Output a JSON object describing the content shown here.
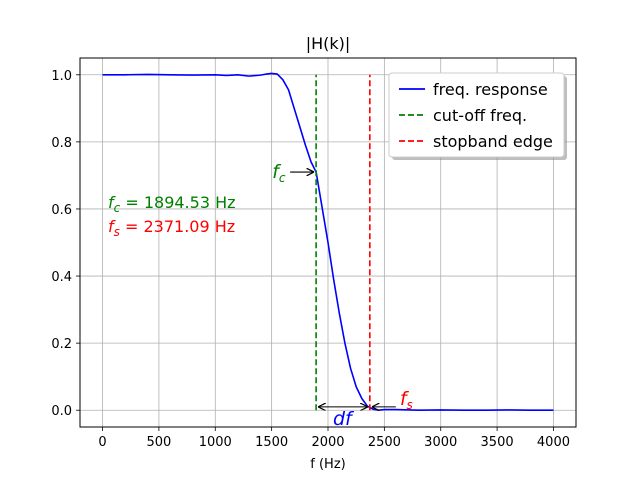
{
  "chart_data": {
    "type": "line",
    "title": "|H(k)|",
    "xlabel": "f (Hz)",
    "ylabel": "",
    "xlim": [
      -200,
      4200
    ],
    "ylim": [
      -0.05,
      1.05
    ],
    "grid": true,
    "x_ticks": [
      0,
      500,
      1000,
      1500,
      2000,
      2500,
      3000,
      3500,
      4000
    ],
    "x_tick_labels": [
      "0",
      "500",
      "1000",
      "1500",
      "2000",
      "2500",
      "3000",
      "3500",
      "4000"
    ],
    "y_ticks": [
      0.0,
      0.2,
      0.4,
      0.6,
      0.8,
      1.0
    ],
    "y_tick_labels": [
      "0.0",
      "0.2",
      "0.4",
      "0.6",
      "0.8",
      "1.0"
    ],
    "legend_position": "top-right",
    "series": [
      {
        "name": "freq. response",
        "color": "#0000ff",
        "style": "solid",
        "x": [
          0,
          200,
          400,
          600,
          800,
          1000,
          1100,
          1200,
          1300,
          1400,
          1450,
          1500,
          1550,
          1600,
          1650,
          1700,
          1750,
          1800,
          1850,
          1894.53,
          1950,
          2000,
          2050,
          2100,
          2150,
          2200,
          2250,
          2300,
          2350,
          2400,
          2450,
          2500,
          2600,
          2800,
          3000,
          3200,
          3400,
          3600,
          3800,
          4000
        ],
        "y": [
          1.0,
          1.0,
          1.001,
          1.0,
          0.999,
          1.0,
          0.998,
          1.0,
          0.996,
          0.999,
          1.002,
          1.004,
          1.002,
          0.985,
          0.955,
          0.9,
          0.845,
          0.79,
          0.74,
          0.71,
          0.6,
          0.5,
          0.39,
          0.29,
          0.2,
          0.125,
          0.07,
          0.035,
          0.012,
          0.003,
          0.0,
          0.002,
          0.002,
          0.0,
          0.001,
          0.0,
          0.0,
          0.001,
          0.0,
          0.0
        ]
      },
      {
        "name": "cut-off freq.",
        "color": "#008000",
        "style": "dashed",
        "x": [
          1894.53,
          1894.53
        ],
        "y": [
          0.0,
          1.0
        ]
      },
      {
        "name": "stopband edge",
        "color": "#ff0000",
        "style": "dashed",
        "x": [
          2371.09,
          2371.09
        ],
        "y": [
          0.0,
          1.0
        ]
      }
    ],
    "annotations": {
      "fc_text": "f",
      "fc_sub": "c",
      "fc_value_text": " = 1894.53 Hz",
      "fs_text": "f",
      "fs_sub": "s",
      "fs_value_text": " = 2371.09 Hz",
      "df_text": "df",
      "fc_value": 1894.53,
      "fs_value": 2371.09,
      "fc_arrow_y": 0.71,
      "fs_arrow_y": 0.01,
      "df_arrow_y": 0.01,
      "fc_label_color": "#008000",
      "fs_label_color": "#ff0000",
      "df_label_color": "#0000ff"
    }
  }
}
